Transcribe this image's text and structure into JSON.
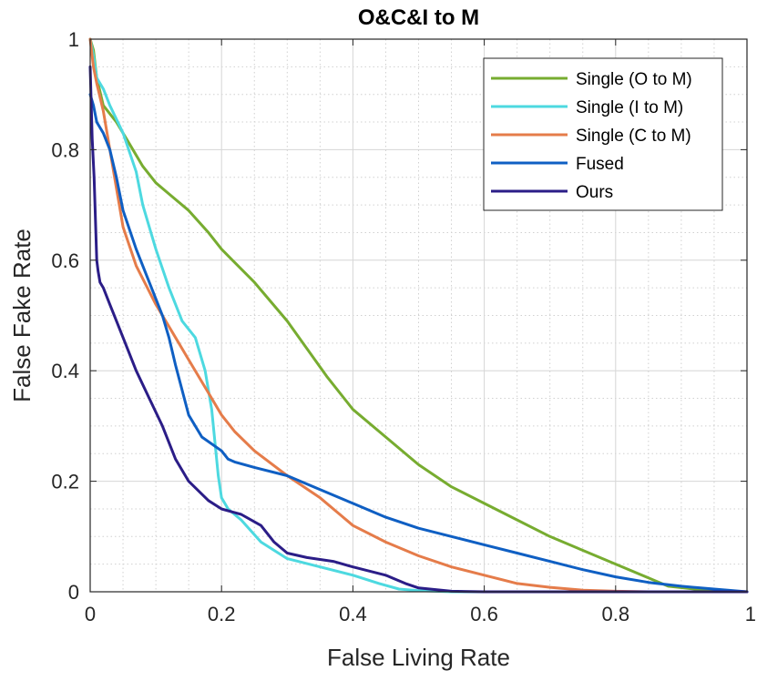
{
  "chart_data": {
    "type": "line",
    "title": "O&C&I to M",
    "xlabel": "False Living Rate",
    "ylabel": "False Fake Rate",
    "xlim": [
      0,
      1
    ],
    "ylim": [
      0,
      1
    ],
    "x_ticks": [
      {
        "value": 0,
        "label": "0"
      },
      {
        "value": 0.2,
        "label": "0.2"
      },
      {
        "value": 0.4,
        "label": "0.4"
      },
      {
        "value": 0.6,
        "label": "0.6"
      },
      {
        "value": 0.8,
        "label": "0.8"
      },
      {
        "value": 1,
        "label": "1"
      }
    ],
    "y_ticks": [
      {
        "value": 0,
        "label": "0"
      },
      {
        "value": 0.2,
        "label": "0.2"
      },
      {
        "value": 0.4,
        "label": "0.4"
      },
      {
        "value": 0.6,
        "label": "0.6"
      },
      {
        "value": 0.8,
        "label": "0.8"
      },
      {
        "value": 1,
        "label": "1"
      }
    ],
    "minor_step": 0.05,
    "grid": true,
    "legend_position": "top-right",
    "series": [
      {
        "name": "Single (O to M)",
        "color": "#77ac30",
        "x": [
          0,
          0.005,
          0.01,
          0.02,
          0.04,
          0.06,
          0.08,
          0.1,
          0.12,
          0.15,
          0.18,
          0.2,
          0.25,
          0.3,
          0.33,
          0.36,
          0.4,
          0.45,
          0.5,
          0.55,
          0.6,
          0.65,
          0.7,
          0.75,
          0.8,
          0.85,
          0.88,
          0.92,
          0.96,
          1.0
        ],
        "y": [
          1.0,
          0.98,
          0.93,
          0.88,
          0.85,
          0.81,
          0.77,
          0.74,
          0.72,
          0.69,
          0.65,
          0.62,
          0.56,
          0.49,
          0.44,
          0.39,
          0.33,
          0.28,
          0.23,
          0.19,
          0.16,
          0.13,
          0.1,
          0.075,
          0.05,
          0.025,
          0.01,
          0.005,
          0.002,
          0.0
        ]
      },
      {
        "name": "Single (I to M)",
        "color": "#4dd9e0",
        "x": [
          0,
          0.005,
          0.01,
          0.02,
          0.03,
          0.05,
          0.07,
          0.08,
          0.1,
          0.12,
          0.14,
          0.16,
          0.175,
          0.185,
          0.19,
          0.195,
          0.2,
          0.21,
          0.23,
          0.26,
          0.3,
          0.35,
          0.4,
          0.44,
          0.47,
          0.5,
          0.55,
          0.6,
          0.8,
          1.0
        ],
        "y": [
          1.0,
          0.97,
          0.93,
          0.91,
          0.88,
          0.83,
          0.76,
          0.7,
          0.62,
          0.55,
          0.49,
          0.46,
          0.4,
          0.33,
          0.27,
          0.21,
          0.17,
          0.15,
          0.13,
          0.09,
          0.06,
          0.045,
          0.03,
          0.015,
          0.005,
          0.002,
          0.0,
          0.0,
          0.0,
          0.0
        ]
      },
      {
        "name": "Single (C to M)",
        "color": "#e57c4a",
        "x": [
          0,
          0.005,
          0.01,
          0.02,
          0.03,
          0.05,
          0.07,
          0.1,
          0.13,
          0.15,
          0.18,
          0.2,
          0.22,
          0.25,
          0.3,
          0.35,
          0.38,
          0.4,
          0.45,
          0.5,
          0.55,
          0.6,
          0.65,
          0.7,
          0.75,
          0.8,
          0.85,
          1.0
        ],
        "y": [
          1.0,
          0.95,
          0.92,
          0.87,
          0.8,
          0.66,
          0.59,
          0.52,
          0.46,
          0.42,
          0.36,
          0.32,
          0.29,
          0.255,
          0.21,
          0.17,
          0.14,
          0.12,
          0.09,
          0.065,
          0.045,
          0.03,
          0.015,
          0.008,
          0.003,
          0.001,
          0.0,
          0.0
        ]
      },
      {
        "name": "Fused",
        "color": "#0f5fc3",
        "x": [
          0,
          0.005,
          0.01,
          0.02,
          0.03,
          0.04,
          0.05,
          0.07,
          0.09,
          0.11,
          0.12,
          0.13,
          0.15,
          0.17,
          0.2,
          0.21,
          0.22,
          0.25,
          0.3,
          0.35,
          0.4,
          0.45,
          0.5,
          0.55,
          0.6,
          0.65,
          0.7,
          0.75,
          0.8,
          0.85,
          0.9,
          0.95,
          1.0
        ],
        "y": [
          0.9,
          0.88,
          0.85,
          0.83,
          0.8,
          0.75,
          0.69,
          0.62,
          0.56,
          0.5,
          0.46,
          0.41,
          0.32,
          0.28,
          0.255,
          0.24,
          0.235,
          0.225,
          0.21,
          0.185,
          0.16,
          0.135,
          0.115,
          0.1,
          0.085,
          0.07,
          0.055,
          0.04,
          0.027,
          0.017,
          0.01,
          0.005,
          0.0
        ]
      },
      {
        "name": "Ours",
        "color": "#2b1d87",
        "x": [
          0,
          0.003,
          0.006,
          0.01,
          0.012,
          0.015,
          0.02,
          0.03,
          0.05,
          0.07,
          0.09,
          0.11,
          0.13,
          0.15,
          0.18,
          0.2,
          0.23,
          0.26,
          0.28,
          0.3,
          0.33,
          0.37,
          0.4,
          0.45,
          0.48,
          0.5,
          0.55,
          0.6,
          0.8,
          1.0
        ],
        "y": [
          0.95,
          0.82,
          0.75,
          0.6,
          0.58,
          0.56,
          0.55,
          0.52,
          0.46,
          0.4,
          0.35,
          0.3,
          0.24,
          0.2,
          0.165,
          0.15,
          0.14,
          0.12,
          0.09,
          0.07,
          0.062,
          0.055,
          0.045,
          0.03,
          0.015,
          0.007,
          0.001,
          0.0,
          0.0,
          0.0
        ]
      }
    ]
  }
}
